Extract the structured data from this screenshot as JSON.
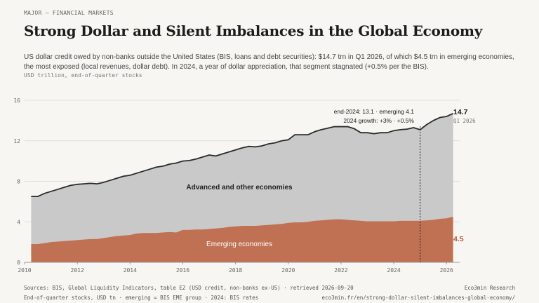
{
  "header": {
    "kicker": "MAJOR — FINANCIAL MARKETS",
    "title": "Strong Dollar and Silent Imbalances in the Global Economy",
    "subtitle": "US dollar credit owed by non-banks outside the United States (BIS, loans and debt securities): $14.7 trn in Q1 2026, of which $4.5 trn in emerging economies, the most exposed (local revenues, dollar debt). In 2024, a year of dollar appreciation, that segment stagnated (+0.5% per the BIS).",
    "units": "USD trillion, end-of-quarter stocks"
  },
  "footer": {
    "left1": "Sources: BIS, Global Liquidity Indicators, table E2 (USD credit, non-banks ex-US) · retrieved 2026-09-20",
    "right1": "Eco3min Research",
    "left2": "End-of-quarter stocks, USD tn · emerging = BIS EME group · 2024: BIS rates",
    "right2": "eco3min.fr/en/strong-dollar-silent-imbalances-global-economy/"
  },
  "chart_data": {
    "type": "area",
    "stacked": true,
    "xlim": [
      2010,
      2026.5
    ],
    "ylim": [
      0,
      16
    ],
    "y_ticks": [
      "0",
      "4",
      "8",
      "12",
      "16"
    ],
    "y_tick_values": [
      0,
      4,
      8,
      12,
      16
    ],
    "x_ticks": [
      "2010",
      "2012",
      "2014",
      "2016",
      "2018",
      "2020",
      "2022",
      "2024",
      "2026"
    ],
    "x_tick_values": [
      2010,
      2012,
      2014,
      2016,
      2018,
      2020,
      2022,
      2024,
      2026
    ],
    "grid": true,
    "x": [
      2010.25,
      2010.5,
      2010.75,
      2011.0,
      2011.25,
      2011.5,
      2011.75,
      2012.0,
      2012.25,
      2012.5,
      2012.75,
      2013.0,
      2013.25,
      2013.5,
      2013.75,
      2014.0,
      2014.25,
      2014.5,
      2014.75,
      2015.0,
      2015.25,
      2015.5,
      2015.75,
      2016.0,
      2016.25,
      2016.5,
      2016.75,
      2017.0,
      2017.25,
      2017.5,
      2017.75,
      2018.0,
      2018.25,
      2018.5,
      2018.75,
      2019.0,
      2019.25,
      2019.5,
      2019.75,
      2020.0,
      2020.25,
      2020.5,
      2020.75,
      2021.0,
      2021.25,
      2021.5,
      2021.75,
      2022.0,
      2022.25,
      2022.5,
      2022.75,
      2023.0,
      2023.25,
      2023.5,
      2023.75,
      2024.0,
      2024.25,
      2024.5,
      2024.75,
      2025.0,
      2025.25,
      2025.5,
      2025.75,
      2026.0,
      2026.25
    ],
    "series": [
      {
        "name": "Emerging economies",
        "values": [
          1.8,
          1.8,
          1.9,
          2.0,
          2.05,
          2.1,
          2.15,
          2.2,
          2.25,
          2.3,
          2.3,
          2.4,
          2.5,
          2.6,
          2.65,
          2.7,
          2.85,
          2.9,
          2.9,
          2.9,
          2.95,
          3.0,
          2.95,
          3.2,
          3.2,
          3.25,
          3.25,
          3.3,
          3.35,
          3.4,
          3.5,
          3.55,
          3.6,
          3.6,
          3.6,
          3.65,
          3.7,
          3.75,
          3.8,
          3.9,
          3.95,
          3.95,
          4.0,
          4.1,
          4.15,
          4.2,
          4.25,
          4.25,
          4.2,
          4.15,
          4.1,
          4.05,
          4.05,
          4.05,
          4.05,
          4.05,
          4.1,
          4.1,
          4.1,
          4.1,
          4.15,
          4.2,
          4.3,
          4.35,
          4.5
        ]
      },
      {
        "name": "Advanced and other economies",
        "values": [
          4.7,
          4.7,
          4.9,
          5.0,
          5.15,
          5.3,
          5.45,
          5.5,
          5.5,
          5.5,
          5.45,
          5.5,
          5.6,
          5.7,
          5.85,
          5.9,
          5.95,
          6.1,
          6.3,
          6.5,
          6.55,
          6.7,
          6.85,
          6.8,
          6.85,
          6.95,
          7.15,
          7.3,
          7.15,
          7.3,
          7.4,
          7.55,
          7.7,
          7.85,
          7.8,
          7.85,
          8.0,
          8.05,
          8.2,
          8.2,
          8.65,
          8.65,
          8.6,
          8.8,
          8.95,
          9.05,
          9.15,
          9.15,
          9.2,
          9.05,
          8.7,
          8.75,
          8.65,
          8.75,
          8.75,
          8.95,
          9.0,
          9.05,
          9.2,
          9.0,
          9.45,
          9.8,
          10.0,
          10.05,
          10.2
        ]
      }
    ],
    "total_label": "14.7",
    "total_sublabel": "Q1 2026",
    "emerging_label": "4.5",
    "marker_x": 2025.0,
    "annotation_line1": "end-2024: 13.1 · emerging 4.1",
    "annotation_line2": "2024 growth: +3% · +0.5%"
  },
  "colors": {
    "emerging": "#c07153",
    "advanced": "#c9c9c9",
    "total_line": "#2a2a2a",
    "emerging_label": "#b9573a",
    "grid": "#e0ded8",
    "axis": "#9a9a9a"
  }
}
